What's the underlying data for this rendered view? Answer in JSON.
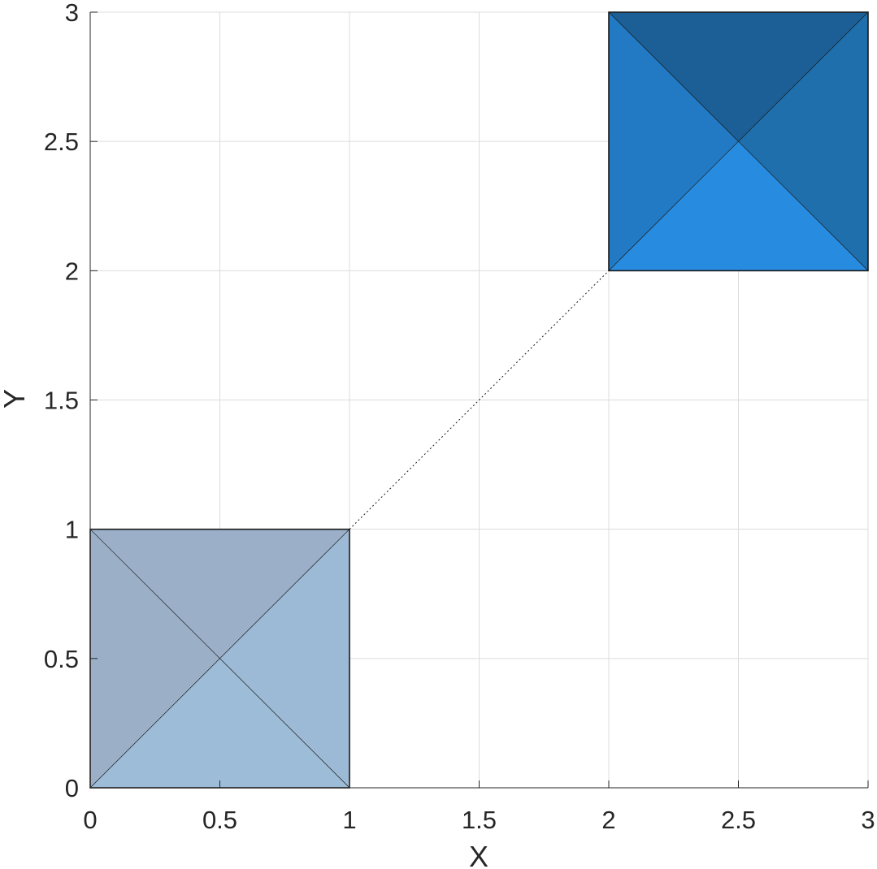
{
  "chart_data": {
    "type": "patch",
    "title": "",
    "xlabel": "X",
    "ylabel": "Y",
    "xlim": [
      0,
      3
    ],
    "ylim": [
      0,
      3
    ],
    "xticks": [
      0,
      0.5,
      1,
      1.5,
      2,
      2.5,
      3
    ],
    "xtick_labels": [
      "0",
      "0.5",
      "1",
      "1.5",
      "2",
      "2.5",
      "3"
    ],
    "yticks": [
      0,
      0.5,
      1,
      1.5,
      2,
      2.5,
      3
    ],
    "ytick_labels": [
      "0",
      "0.5",
      "1",
      "1.5",
      "2",
      "2.5",
      "3"
    ],
    "grid": true,
    "squares": [
      {
        "name": "lower-left-square",
        "x0": 0,
        "y0": 0,
        "x1": 1,
        "y1": 1,
        "center": [
          0.5,
          0.5
        ],
        "faces": {
          "top": "#9bb0c8",
          "left": "#9bb0c7",
          "right": "#9cb9d5",
          "bottom": "#9dbcd7"
        }
      },
      {
        "name": "upper-right-square",
        "x0": 2,
        "y0": 2,
        "x1": 3,
        "y1": 3,
        "center": [
          2.5,
          2.5
        ],
        "faces": {
          "top": "#1b5f96",
          "left": "#237ac4",
          "right": "#1f6fad",
          "bottom": "#278ce0"
        }
      }
    ],
    "connector": {
      "style": "dotted",
      "from": [
        1,
        1
      ],
      "to": [
        2,
        2
      ]
    }
  }
}
